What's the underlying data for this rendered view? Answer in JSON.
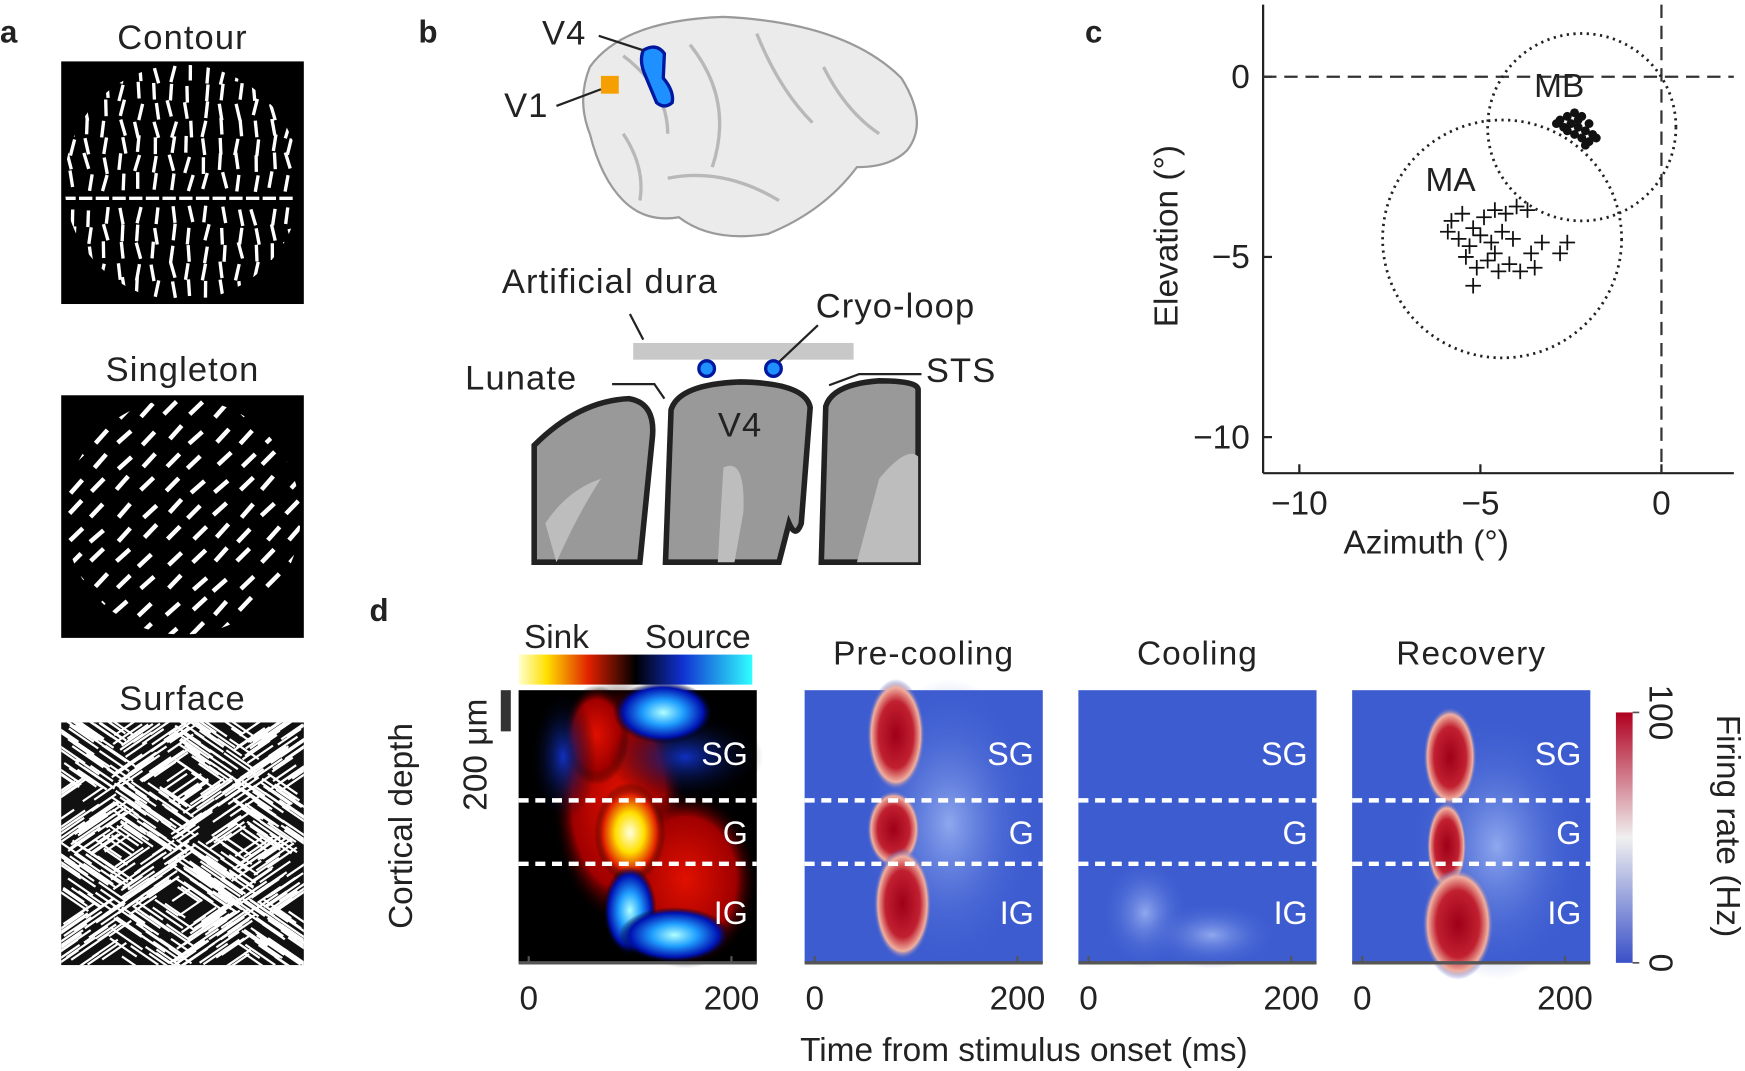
{
  "panels": {
    "a": {
      "label": "a",
      "stimuli": [
        "Contour",
        "Singleton",
        "Surface"
      ]
    },
    "b": {
      "label": "b",
      "labels": {
        "v4_brain": "V4",
        "v1": "V1",
        "dura": "Artificial dura",
        "cryo": "Cryo-loop",
        "lunate": "Lunate",
        "sts": "STS",
        "v4_section": "V4"
      }
    },
    "c": {
      "label": "c",
      "type": "scatter",
      "xlabel": "Azimuth (°)",
      "ylabel": "Elevation (°)",
      "xlim": [
        -11,
        2
      ],
      "ylim": [
        -11,
        2
      ],
      "xticks": [
        {
          "value": -10,
          "label": "−10"
        },
        {
          "value": -5,
          "label": "−5"
        },
        0
      ],
      "yticks": [
        {
          "value": -10,
          "label": "−10"
        },
        {
          "value": -5,
          "label": "−5"
        },
        0
      ],
      "series": [
        {
          "name": "MA",
          "marker": "plus",
          "color": "#111",
          "x": [
            -5.8,
            -5.5,
            -5.2,
            -4.9,
            -4.6,
            -4.3,
            -4.0,
            -3.7,
            -5.6,
            -5.3,
            -5.0,
            -4.7,
            -4.4,
            -4.1,
            -5.4,
            -5.1,
            -4.8,
            -4.5,
            -4.2,
            -3.9,
            -3.5,
            -3.3,
            -2.8,
            -2.6,
            -5.2,
            -5.9,
            -3.6,
            -4.6
          ],
          "y": [
            -4.0,
            -3.8,
            -4.2,
            -3.9,
            -3.7,
            -3.8,
            -3.6,
            -3.7,
            -4.5,
            -4.7,
            -4.4,
            -4.6,
            -4.3,
            -4.5,
            -5.0,
            -5.3,
            -5.1,
            -5.4,
            -5.2,
            -5.4,
            -5.3,
            -4.6,
            -4.9,
            -4.6,
            -5.8,
            -4.3,
            -4.9,
            -4.9
          ]
        },
        {
          "name": "MB",
          "marker": "dot",
          "color": "#111",
          "x": [
            -2.8,
            -2.6,
            -2.4,
            -2.2,
            -2.7,
            -2.5,
            -2.3,
            -2.1,
            -2.0,
            -2.4,
            -2.2,
            -2.0,
            -1.9,
            -1.8,
            -2.6,
            -2.9,
            -2.3,
            -2.1
          ],
          "y": [
            -1.2,
            -1.1,
            -1.0,
            -1.1,
            -1.4,
            -1.3,
            -1.4,
            -1.5,
            -1.3,
            -1.6,
            -1.7,
            -1.8,
            -1.6,
            -1.7,
            -1.5,
            -1.3,
            -1.2,
            -1.9
          ]
        }
      ],
      "circles": [
        {
          "cx": -4.4,
          "cy": -4.5,
          "r": 3.3
        },
        {
          "cx": -2.2,
          "cy": -1.4,
          "r": 2.6
        }
      ]
    },
    "d": {
      "label": "d",
      "csd_legend": [
        "Sink",
        "Source"
      ],
      "scale_bar": "200 μm",
      "ylabel": "Cortical depth",
      "xlabel": "Time from stimulus onset (ms)",
      "xlim": [
        -10,
        225
      ],
      "xticks": [
        0,
        200
      ],
      "layers": [
        "SG",
        "G",
        "IG"
      ],
      "conditions": [
        "Pre-cooling",
        "Cooling",
        "Recovery"
      ],
      "colorbar": {
        "label": "Firing rate (Hz)",
        "lim": [
          0,
          100
        ],
        "ticks": [
          0,
          100
        ]
      }
    }
  }
}
